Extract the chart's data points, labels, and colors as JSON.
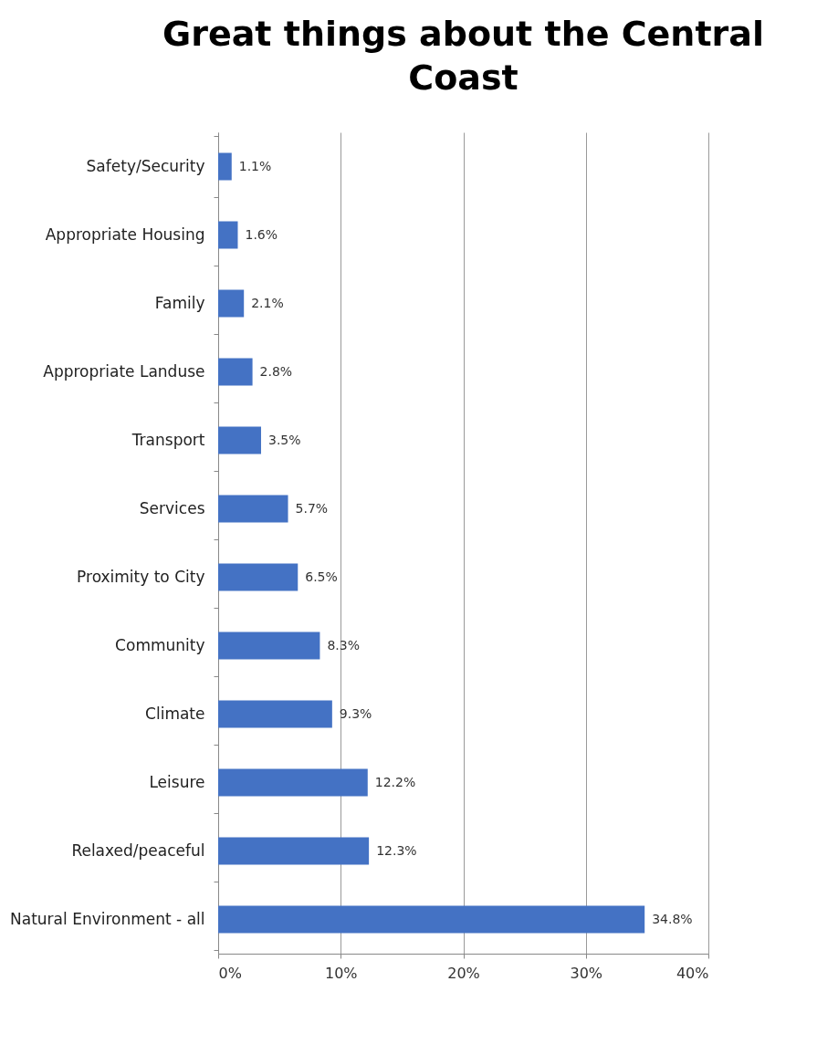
{
  "chart_data": {
    "type": "bar",
    "orientation": "horizontal",
    "title": "Great things about the Central Coast",
    "categories": [
      "Safety/Security",
      "Appropriate Housing",
      "Family",
      "Appropriate Landuse",
      "Transport",
      "Services",
      "Proximity to City",
      "Community",
      "Climate",
      "Leisure",
      "Relaxed/peaceful",
      "Natural Environment - all"
    ],
    "values": [
      1.1,
      1.6,
      2.1,
      2.8,
      3.5,
      5.7,
      6.5,
      8.3,
      9.3,
      12.2,
      12.3,
      34.8
    ],
    "value_labels": [
      "1.1%",
      "1.6%",
      "2.1%",
      "2.8%",
      "3.5%",
      "5.7%",
      "6.5%",
      "8.3%",
      "9.3%",
      "12.2%",
      "12.3%",
      "34.8%"
    ],
    "color": "#4472c4",
    "xlim": [
      0,
      40
    ],
    "xticks": [
      {
        "value": 0,
        "label": "0%"
      },
      {
        "value": 10,
        "label": "10%"
      },
      {
        "value": 20,
        "label": "20%"
      },
      {
        "value": 30,
        "label": "30%"
      },
      {
        "value": 40,
        "label": "40%"
      }
    ],
    "grid": true
  }
}
